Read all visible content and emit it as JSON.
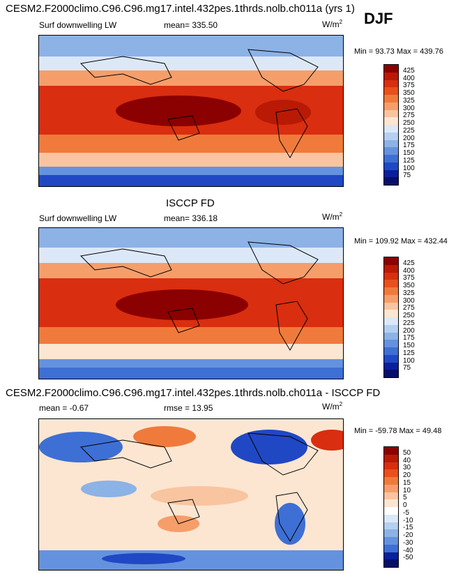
{
  "header": {
    "main_title": "CESM2.F2000climo.C96.C96.mg17.intel.432pes.1thrds.nolb.ch011a (yrs 1)",
    "season": "DJF"
  },
  "panel1": {
    "variable": "Surf downwelling LW",
    "mean_text": "mean= 335.50",
    "units": "W/m",
    "units_sup": "2",
    "minmax_text": "Min =  93.73 Max = 439.76"
  },
  "panel2": {
    "title": "ISCCP FD",
    "variable": "Surf downwelling LW",
    "mean_text": "mean= 336.18",
    "units": "W/m",
    "units_sup": "2",
    "minmax_text": "Min = 109.92 Max = 432.44"
  },
  "panel3": {
    "title": "CESM2.F2000climo.C96.C96.mg17.intel.432pes.1thrds.nolb.ch011a - ISCCP FD",
    "mean_text": "mean =  -0.67",
    "rmse_text": "rmse =  13.95",
    "units": "W/m",
    "units_sup": "2",
    "minmax_text": "Min = -59.78 Max =  49.48"
  },
  "chart_data": [
    {
      "type": "heatmap",
      "title": "CESM2.F2000climo.C96.C96.mg17.intel.432pes.1thrds.nolb.ch011a (yrs 1)",
      "subtitle": "Surf downwelling LW",
      "season": "DJF",
      "mean": 335.5,
      "min": 93.73,
      "max": 439.76,
      "units": "W/m2",
      "colorbar_levels": [
        "425",
        "400",
        "375",
        "350",
        "325",
        "300",
        "275",
        "250",
        "225",
        "200",
        "175",
        "150",
        "125",
        "100",
        "75"
      ],
      "colorbar_colors": [
        "#8b0000",
        "#b81a05",
        "#d92e0f",
        "#e8501c",
        "#f07a3c",
        "#f59e6a",
        "#f9c4a0",
        "#fce6d2",
        "#dce8f7",
        "#b4cff0",
        "#8cb2e6",
        "#6592de",
        "#3e6fd4",
        "#2048c4",
        "#0a1f9c",
        "#06106a"
      ]
    },
    {
      "type": "heatmap",
      "title": "ISCCP FD",
      "subtitle": "Surf downwelling LW",
      "mean": 336.18,
      "min": 109.92,
      "max": 432.44,
      "units": "W/m2",
      "colorbar_levels": [
        "425",
        "400",
        "375",
        "350",
        "325",
        "300",
        "275",
        "250",
        "225",
        "200",
        "175",
        "150",
        "125",
        "100",
        "75"
      ],
      "colorbar_colors": [
        "#8b0000",
        "#b81a05",
        "#d92e0f",
        "#e8501c",
        "#f07a3c",
        "#f59e6a",
        "#f9c4a0",
        "#fce6d2",
        "#dce8f7",
        "#b4cff0",
        "#8cb2e6",
        "#6592de",
        "#3e6fd4",
        "#2048c4",
        "#0a1f9c",
        "#06106a"
      ]
    },
    {
      "type": "heatmap",
      "title": "CESM2.F2000climo.C96.C96.mg17.intel.432pes.1thrds.nolb.ch011a - ISCCP FD",
      "mean": -0.67,
      "rmse": 13.95,
      "min": -59.78,
      "max": 49.48,
      "units": "W/m2",
      "colorbar_levels": [
        "50",
        "40",
        "30",
        "20",
        "15",
        "10",
        "5",
        "0",
        "-5",
        "-10",
        "-15",
        "-20",
        "-30",
        "-40",
        "-50"
      ],
      "colorbar_colors": [
        "#8b0000",
        "#b81a05",
        "#d92e0f",
        "#e8501c",
        "#f07a3c",
        "#f59e6a",
        "#f9c4a0",
        "#fce6d2",
        "#ffffff",
        "#dce8f7",
        "#b4cff0",
        "#8cb2e6",
        "#6592de",
        "#3e6fd4",
        "#0a1f9c",
        "#06106a"
      ]
    }
  ]
}
